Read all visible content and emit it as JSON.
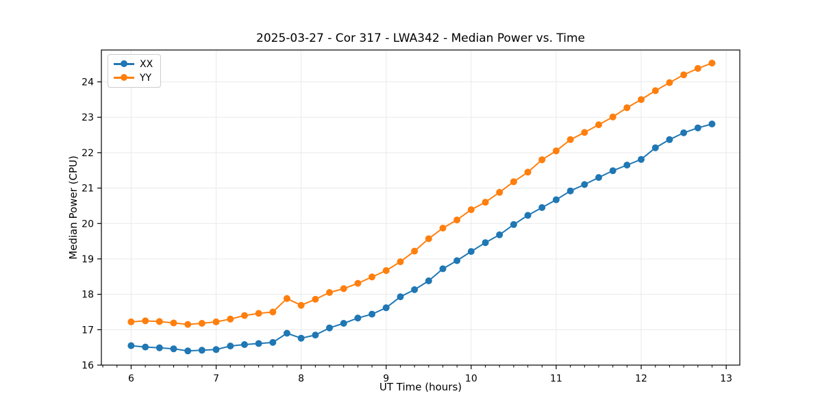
{
  "chart_data": {
    "type": "line",
    "title": "2025-03-27 - Cor 317 - LWA342 - Median Power vs. Time",
    "xlabel": "UT Time (hours)",
    "ylabel": "Median Power (CPU)",
    "xlim": [
      5.65,
      13.16
    ],
    "ylim": [
      16.0,
      24.9
    ],
    "x_ticks": [
      6,
      7,
      8,
      9,
      10,
      11,
      12,
      13
    ],
    "y_ticks": [
      16,
      17,
      18,
      19,
      20,
      21,
      22,
      23,
      24
    ],
    "x_minor_step": 0.16667,
    "grid": true,
    "legend_position": "upper-left",
    "marker": "circle",
    "x": [
      6.0,
      6.167,
      6.333,
      6.5,
      6.667,
      6.833,
      7.0,
      7.167,
      7.333,
      7.5,
      7.667,
      7.833,
      8.0,
      8.167,
      8.333,
      8.5,
      8.667,
      8.833,
      9.0,
      9.167,
      9.333,
      9.5,
      9.667,
      9.833,
      10.0,
      10.167,
      10.333,
      10.5,
      10.667,
      10.833,
      11.0,
      11.167,
      11.333,
      11.5,
      11.667,
      11.833,
      12.0,
      12.167,
      12.333,
      12.5,
      12.667,
      12.833
    ],
    "series": [
      {
        "name": "XX",
        "color": "#1f77b4",
        "values": [
          16.55,
          16.51,
          16.49,
          16.46,
          16.4,
          16.42,
          16.44,
          16.54,
          16.58,
          16.61,
          16.64,
          16.9,
          16.76,
          16.85,
          17.05,
          17.18,
          17.33,
          17.44,
          17.62,
          17.93,
          18.13,
          18.38,
          18.72,
          18.95,
          19.21,
          19.46,
          19.68,
          19.97,
          20.23,
          20.45,
          20.67,
          20.92,
          21.1,
          21.3,
          21.49,
          21.65,
          21.81,
          22.14,
          22.37,
          22.56,
          22.7,
          22.81
        ]
      },
      {
        "name": "YY",
        "color": "#ff7f0e",
        "values": [
          17.22,
          17.25,
          17.23,
          17.19,
          17.15,
          17.18,
          17.22,
          17.3,
          17.4,
          17.46,
          17.5,
          17.88,
          17.69,
          17.86,
          18.05,
          18.16,
          18.31,
          18.49,
          18.67,
          18.92,
          19.22,
          19.57,
          19.87,
          20.1,
          20.39,
          20.6,
          20.88,
          21.18,
          21.45,
          21.8,
          22.05,
          22.37,
          22.57,
          22.79,
          23.01,
          23.27,
          23.5,
          23.75,
          23.98,
          24.2,
          24.38,
          24.53
        ]
      }
    ]
  },
  "colors": {
    "background": "#ffffff",
    "grid": "#e9e9e9",
    "spine": "#000000",
    "tick": "#000000",
    "text": "#000000"
  }
}
